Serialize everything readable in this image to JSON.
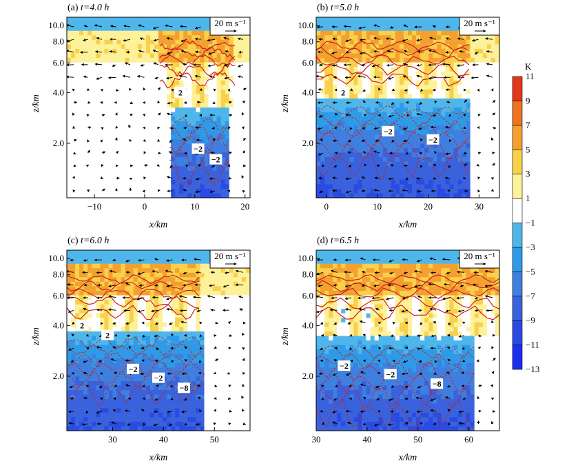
{
  "colors": {
    "levels": [
      -13,
      -11,
      -9,
      -7,
      -5,
      -3,
      -1,
      1,
      3,
      5,
      7,
      9,
      11
    ],
    "fills": [
      "#1c2ef0",
      "#2a4be2",
      "#3a62dc",
      "#3f7fe0",
      "#2f9be8",
      "#4fb6ec",
      "#ffffff",
      "#fdf19a",
      "#f9d04a",
      "#f4a030",
      "#ee7422",
      "#e2381c"
    ],
    "contour": "#cc1f1f",
    "vector": "#000000"
  },
  "colorbar": {
    "unit": "K",
    "ticks": [
      "11",
      "9",
      "7",
      "5",
      "3",
      "1",
      "−1",
      "−3",
      "−5",
      "−7",
      "−9",
      "−11",
      "−13"
    ]
  },
  "chart_data": [
    {
      "type": "heatmap",
      "panel": "(a)",
      "time_label": "t=4.0 h",
      "xlabel": "x/km",
      "ylabel": "z/km",
      "xlim": [
        -15.5,
        21
      ],
      "xticks": [
        "−10",
        "0",
        "10",
        "20"
      ],
      "xtick_values": [
        -10,
        0,
        10,
        20
      ],
      "yticks": [
        "10.0",
        "8.0",
        "6.0",
        "4.0",
        "2.0"
      ],
      "ytick_values": [
        10,
        8,
        6,
        4,
        2
      ],
      "vector_ref": "20 m s⁻¹",
      "contour_labels": [
        "2",
        "−2",
        "−2"
      ],
      "features": {
        "warm_core_x": [
          3,
          18
        ],
        "cold_pool_x": [
          5,
          17
        ],
        "cold_pool_top": 2.6,
        "front_x": 15.5
      }
    },
    {
      "type": "heatmap",
      "panel": "(b)",
      "time_label": "t=5.0 h",
      "xlabel": "x/km",
      "ylabel": "z/km",
      "xlim": [
        -2,
        34
      ],
      "xticks": [
        "0",
        "10",
        "20",
        "30"
      ],
      "xtick_values": [
        0,
        10,
        20,
        30
      ],
      "yticks": [
        "10.0",
        "8.0",
        "6.0",
        "4.0",
        "2.0"
      ],
      "ytick_values": [
        10,
        8,
        6,
        4,
        2
      ],
      "vector_ref": "20 m s⁻¹",
      "contour_labels": [
        "2",
        "−2",
        "−2"
      ],
      "features": {
        "warm_core_x": [
          -2,
          28
        ],
        "cold_pool_x": [
          -2,
          28
        ],
        "cold_pool_top": 3.1,
        "front_x": 27
      }
    },
    {
      "type": "heatmap",
      "panel": "(c)",
      "time_label": "t=6.0 h",
      "xlabel": "x/km",
      "ylabel": "z/km",
      "xlim": [
        21,
        57
      ],
      "xticks": [
        "30",
        "40",
        "50"
      ],
      "xtick_values": [
        30,
        40,
        50
      ],
      "yticks": [
        "10.0",
        "8.0",
        "6.0",
        "4.0",
        "2.0"
      ],
      "ytick_values": [
        10,
        8,
        6,
        4,
        2
      ],
      "vector_ref": "20 m s⁻¹",
      "contour_labels": [
        "2",
        "2",
        "−2",
        "−2",
        "−8"
      ],
      "features": {
        "warm_core_x": [
          21,
          47
        ],
        "cold_pool_x": [
          21,
          48
        ],
        "cold_pool_top": 3.2,
        "front_x": 48
      }
    },
    {
      "type": "heatmap",
      "panel": "(d)",
      "time_label": "t=6.5 h",
      "xlabel": "x/km",
      "ylabel": "z/km",
      "xlim": [
        30,
        66
      ],
      "xticks": [
        "30",
        "40",
        "50",
        "60"
      ],
      "xtick_values": [
        30,
        40,
        50,
        60
      ],
      "yticks": [
        "10.0",
        "8.0",
        "6.0",
        "4.0",
        "2.0"
      ],
      "ytick_values": [
        10,
        8,
        6,
        4,
        2
      ],
      "vector_ref": "20 m s⁻¹",
      "contour_labels": [
        "−2",
        "−2",
        "−8"
      ],
      "features": {
        "warm_core_x": [
          30,
          66
        ],
        "cold_pool_x": [
          30,
          61
        ],
        "cold_pool_top": 2.8,
        "front_x": 60
      }
    }
  ]
}
